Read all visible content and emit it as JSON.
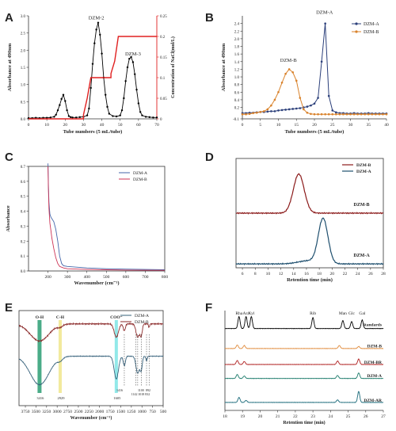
{
  "panels": [
    "A",
    "B",
    "C",
    "D",
    "E",
    "F"
  ],
  "chart_data": [
    {
      "id": "A",
      "type": "line",
      "xlabel": "Tube numbers (5 mL/tube)",
      "ylabel": "Absorbance at 490nm",
      "y2label": "Concentration of NaCl(mol/L)",
      "xlim": [
        0,
        70
      ],
      "ylim": [
        0,
        3.0
      ],
      "y2lim": [
        0,
        0.25
      ],
      "xticks": [
        "0",
        "10",
        "20",
        "30",
        "40",
        "50",
        "60",
        "70"
      ],
      "yticks": [
        "0.0",
        "0.5",
        "1.0",
        "1.5",
        "2.0",
        "2.5",
        "3.0"
      ],
      "y2ticks": [
        "0",
        "0.05",
        "0.1",
        "0.15",
        "0.2",
        "0.25"
      ],
      "annotations": [
        {
          "text": "DZM-2",
          "x": 37,
          "y": 2.9
        },
        {
          "text": "DZM-3",
          "x": 57,
          "y": 1.85
        }
      ],
      "series": [
        {
          "name": "",
          "color": "#000000",
          "marker": "dot",
          "x": [
            0,
            2,
            4,
            6,
            8,
            10,
            12,
            14,
            15,
            16,
            17,
            18,
            19,
            20,
            21,
            22,
            23,
            24,
            26,
            28,
            30,
            32,
            33,
            34,
            35,
            36,
            37,
            38,
            39,
            40,
            41,
            42,
            43,
            44,
            46,
            48,
            50,
            51,
            52,
            53,
            54,
            55,
            56,
            57,
            58,
            59,
            60,
            61,
            62,
            64,
            66,
            68,
            70
          ],
          "y": [
            0.02,
            0.02,
            0.03,
            0.02,
            0.03,
            0.03,
            0.04,
            0.06,
            0.12,
            0.25,
            0.4,
            0.58,
            0.7,
            0.52,
            0.25,
            0.08,
            0.05,
            0.04,
            0.04,
            0.05,
            0.06,
            0.1,
            0.3,
            0.9,
            1.6,
            2.2,
            2.6,
            2.8,
            2.45,
            1.9,
            1.2,
            0.7,
            0.35,
            0.15,
            0.08,
            0.07,
            0.1,
            0.25,
            0.6,
            1.1,
            1.5,
            1.75,
            1.8,
            1.65,
            1.3,
            0.85,
            0.45,
            0.2,
            0.1,
            0.06,
            0.05,
            0.04,
            0.04
          ]
        },
        {
          "name": "",
          "color": "#e02020",
          "axis": "right",
          "marker": "none",
          "x": [
            0,
            30,
            30,
            32,
            34,
            45,
            45,
            47,
            49,
            70
          ],
          "y": [
            0,
            0,
            0.01,
            0.05,
            0.1,
            0.1,
            0.11,
            0.14,
            0.2,
            0.2
          ]
        }
      ]
    },
    {
      "id": "B",
      "type": "line",
      "xlabel": "Tube numbers (5 mL/tube)",
      "ylabel": "Absorbance at 490nm",
      "xlim": [
        0,
        40
      ],
      "ylim": [
        -0.1,
        2.6
      ],
      "xticks": [
        "0",
        "5",
        "10",
        "15",
        "20",
        "25",
        "30",
        "35",
        "40"
      ],
      "yticks": [
        "-0.1",
        "0.2",
        "0.4",
        "0.6",
        "0.8",
        "1.0",
        "1.2",
        "1.4",
        "1.6",
        "1.8",
        "2.0",
        "2.2",
        "2.4"
      ],
      "legend": "top-right",
      "annotations": [
        {
          "text": "DZM-A",
          "x": 22.8,
          "y": 2.65
        },
        {
          "text": "DZM-B",
          "x": 12.8,
          "y": 1.4
        }
      ],
      "series": [
        {
          "name": "DZM-A",
          "color": "#2b3f7a",
          "x": [
            0,
            1,
            2,
            3,
            4,
            5,
            6,
            7,
            8,
            9,
            10,
            11,
            12,
            13,
            14,
            15,
            16,
            17,
            18,
            19,
            20,
            21,
            22,
            23,
            24,
            25,
            26,
            27,
            28,
            29,
            30,
            31,
            32,
            33,
            34,
            35,
            36,
            37,
            38,
            39,
            40
          ],
          "y": [
            0.05,
            0.05,
            0.06,
            0.06,
            0.07,
            0.08,
            0.08,
            0.09,
            0.1,
            0.1,
            0.12,
            0.13,
            0.14,
            0.15,
            0.16,
            0.17,
            0.18,
            0.2,
            0.22,
            0.25,
            0.3,
            0.45,
            1.4,
            2.4,
            0.5,
            0.12,
            0.07,
            0.05,
            0.05,
            0.04,
            0.04,
            0.05,
            0.04,
            0.04,
            0.04,
            0.05,
            0.04,
            0.04,
            0.04,
            0.04,
            0.04
          ]
        },
        {
          "name": "DZM-B",
          "color": "#d9822b",
          "x": [
            0,
            1,
            2,
            3,
            4,
            5,
            6,
            7,
            8,
            9,
            10,
            11,
            12,
            13,
            14,
            15,
            16,
            17,
            18,
            19,
            20,
            21,
            22,
            23,
            24,
            25,
            26,
            27,
            28,
            29,
            30,
            31,
            32,
            33,
            34,
            35,
            36,
            37,
            38,
            39,
            40
          ],
          "y": [
            0.02,
            0.02,
            0.03,
            0.05,
            0.06,
            0.08,
            0.1,
            0.15,
            0.25,
            0.4,
            0.6,
            0.85,
            1.08,
            1.2,
            1.12,
            0.9,
            0.45,
            0.15,
            0.06,
            0.03,
            0.02,
            0.02,
            0.02,
            0.02,
            0.02,
            0.02,
            0.02,
            0.02,
            0.02,
            0.02,
            0.02,
            0.02,
            0.02,
            0.02,
            0.02,
            0.02,
            0.02,
            0.02,
            0.02,
            0.02,
            0.02
          ]
        }
      ]
    },
    {
      "id": "C",
      "type": "line",
      "xlabel": "Wavenumber (cm⁻¹)",
      "ylabel": "Absorbance",
      "xlim": [
        100,
        800
      ],
      "ylim": [
        0,
        0.7
      ],
      "xticks": [
        "200",
        "300",
        "400",
        "500",
        "600",
        "700",
        "800"
      ],
      "yticks": [
        "0.0",
        "0.1",
        "0.2",
        "0.3",
        "0.4",
        "0.5",
        "0.6",
        "0.7"
      ],
      "legend": "top-right",
      "series": [
        {
          "name": "DZM-A",
          "color": "#4466aa",
          "x": [
            200,
            202,
            205,
            210,
            215,
            220,
            230,
            240,
            250,
            260,
            270,
            280,
            300,
            400,
            500,
            600,
            700,
            800
          ],
          "y": [
            0.72,
            0.58,
            0.46,
            0.38,
            0.36,
            0.35,
            0.33,
            0.28,
            0.2,
            0.1,
            0.05,
            0.035,
            0.03,
            0.02,
            0.015,
            0.012,
            0.01,
            0.008
          ]
        },
        {
          "name": "DZM-B",
          "color": "#cc3355",
          "x": [
            200,
            202,
            205,
            210,
            215,
            220,
            230,
            240,
            250,
            260,
            280,
            300,
            400,
            500,
            600,
            700,
            800
          ],
          "y": [
            0.7,
            0.55,
            0.42,
            0.32,
            0.27,
            0.22,
            0.15,
            0.09,
            0.05,
            0.03,
            0.02,
            0.015,
            0.01,
            0.008,
            0.006,
            0.005,
            0.004
          ]
        }
      ]
    },
    {
      "id": "D",
      "type": "line",
      "xlabel": "Retention time (min)",
      "xlim": [
        5,
        28
      ],
      "xticks": [
        "6",
        "8",
        "10",
        "12",
        "14",
        "16",
        "18",
        "20",
        "22",
        "24",
        "26",
        "28"
      ],
      "legend": "top-right",
      "annotations": [
        {
          "text": "DZM-B",
          "x": 25,
          "y": "B"
        },
        {
          "text": "DZM-A",
          "x": 25,
          "y": "A"
        }
      ],
      "series": [
        {
          "name": "DZM-B",
          "color": "#8b1a1a",
          "offset": 1.3,
          "peaks": [
            {
              "c": 14.8,
              "w": 0.85,
              "h": 1.0
            }
          ]
        },
        {
          "name": "DZM-A",
          "color": "#1e4f6e",
          "offset": 0,
          "peaks": [
            {
              "c": 18.6,
              "w": 0.75,
              "h": 1.15
            },
            {
              "c": 16.2,
              "w": 1.5,
              "h": 0.08
            }
          ]
        }
      ]
    },
    {
      "id": "E",
      "type": "line",
      "xlabel": "Wavenumber (cm⁻¹)",
      "xlim": [
        3900,
        500
      ],
      "xticks": [
        "3750",
        "3500",
        "3250",
        "3000",
        "2750",
        "2500",
        "2250",
        "2000",
        "1750",
        "1500",
        "1250",
        "1000",
        "750",
        "500"
      ],
      "legend": "top-right",
      "bands": [
        {
          "label": "O-H",
          "value": "3416",
          "x": 3416,
          "color": "#2a9d73"
        },
        {
          "label": "C-H",
          "value": "2929",
          "x": 2929,
          "color": "#f0e68c"
        },
        {
          "label": "COO⁻",
          "value": "1605",
          "x": 1605,
          "color": "#7fe5e5"
        }
      ],
      "annotations": [
        "1416",
        "1142",
        "1100",
        "1018",
        "892",
        "832"
      ],
      "series": [
        {
          "name": "DZM-A",
          "color": "#35607a"
        },
        {
          "name": "DZM-B",
          "color": "#8b2a2a"
        }
      ]
    },
    {
      "id": "F",
      "type": "line",
      "xlabel": "Retention time (min)",
      "xlim": [
        18,
        27
      ],
      "xticks": [
        "18",
        "19",
        "20",
        "21",
        "22",
        "23",
        "24",
        "25",
        "26",
        "27"
      ],
      "peak_labels": [
        {
          "text": "Rha",
          "x": 18.8
        },
        {
          "text": "Ara",
          "x": 19.2
        },
        {
          "text": "Xyl",
          "x": 19.5
        },
        {
          "text": "Rib",
          "x": 23.0
        },
        {
          "text": "Man",
          "x": 24.7
        },
        {
          "text": "Glc",
          "x": 25.2
        },
        {
          "text": "Gal",
          "x": 25.8
        }
      ],
      "series": [
        {
          "name": "Standards",
          "color": "#000000"
        },
        {
          "name": "DZM-B",
          "color": "#e08a3a"
        },
        {
          "name": "DZM-BR",
          "color": "#b02020"
        },
        {
          "name": "DZM-A",
          "color": "#1a7a6a"
        },
        {
          "name": "DZM-AR",
          "color": "#1a6a7a"
        }
      ]
    }
  ]
}
